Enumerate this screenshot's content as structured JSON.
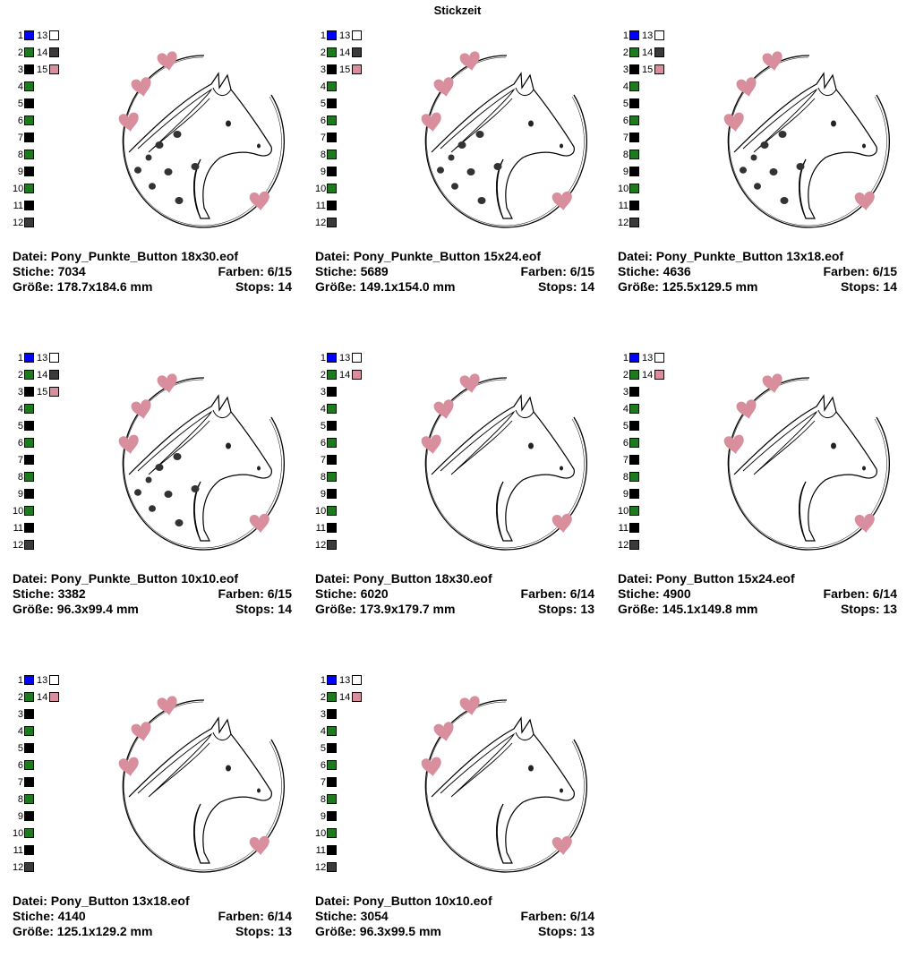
{
  "page_title": "Stickzeit",
  "labels": {
    "file": "Datei:",
    "stitches": "Stiche:",
    "colors": "Farben:",
    "size": "Größe:",
    "stops": "Stops:"
  },
  "colors": {
    "blue": "#0000ff",
    "green": "#1f7a1f",
    "black": "#000000",
    "darkgray": "#3a3a3a",
    "white": "#ffffff",
    "pink": "#d98e9d"
  },
  "designs": [
    {
      "file": "Pony_Punkte_Button 18x30.eof",
      "stitches": "7034",
      "colors": "6/15",
      "size": "178.7x184.6 mm",
      "stops": "14",
      "spots": true,
      "palette": [
        {
          "n": "1",
          "c": "blue",
          "n2": "13",
          "c2": "white"
        },
        {
          "n": "2",
          "c": "green",
          "n2": "14",
          "c2": "darkgray"
        },
        {
          "n": "3",
          "c": "black",
          "n2": "15",
          "c2": "pink"
        },
        {
          "n": "4",
          "c": "green"
        },
        {
          "n": "5",
          "c": "black"
        },
        {
          "n": "6",
          "c": "green"
        },
        {
          "n": "7",
          "c": "black"
        },
        {
          "n": "8",
          "c": "green"
        },
        {
          "n": "9",
          "c": "black"
        },
        {
          "n": "10",
          "c": "green"
        },
        {
          "n": "11",
          "c": "black"
        },
        {
          "n": "12",
          "c": "darkgray"
        }
      ]
    },
    {
      "file": "Pony_Punkte_Button 15x24.eof",
      "stitches": "5689",
      "colors": "6/15",
      "size": "149.1x154.0 mm",
      "stops": "14",
      "spots": true,
      "palette": [
        {
          "n": "1",
          "c": "blue",
          "n2": "13",
          "c2": "white"
        },
        {
          "n": "2",
          "c": "green",
          "n2": "14",
          "c2": "darkgray"
        },
        {
          "n": "3",
          "c": "black",
          "n2": "15",
          "c2": "pink"
        },
        {
          "n": "4",
          "c": "green"
        },
        {
          "n": "5",
          "c": "black"
        },
        {
          "n": "6",
          "c": "green"
        },
        {
          "n": "7",
          "c": "black"
        },
        {
          "n": "8",
          "c": "green"
        },
        {
          "n": "9",
          "c": "black"
        },
        {
          "n": "10",
          "c": "green"
        },
        {
          "n": "11",
          "c": "black"
        },
        {
          "n": "12",
          "c": "darkgray"
        }
      ]
    },
    {
      "file": "Pony_Punkte_Button 13x18.eof",
      "stitches": "4636",
      "colors": "6/15",
      "size": "125.5x129.5 mm",
      "stops": "14",
      "spots": true,
      "palette": [
        {
          "n": "1",
          "c": "blue",
          "n2": "13",
          "c2": "white"
        },
        {
          "n": "2",
          "c": "green",
          "n2": "14",
          "c2": "darkgray"
        },
        {
          "n": "3",
          "c": "black",
          "n2": "15",
          "c2": "pink"
        },
        {
          "n": "4",
          "c": "green"
        },
        {
          "n": "5",
          "c": "black"
        },
        {
          "n": "6",
          "c": "green"
        },
        {
          "n": "7",
          "c": "black"
        },
        {
          "n": "8",
          "c": "green"
        },
        {
          "n": "9",
          "c": "black"
        },
        {
          "n": "10",
          "c": "green"
        },
        {
          "n": "11",
          "c": "black"
        },
        {
          "n": "12",
          "c": "darkgray"
        }
      ]
    },
    {
      "file": "Pony_Punkte_Button 10x10.eof",
      "stitches": "3382",
      "colors": "6/15",
      "size": "96.3x99.4 mm",
      "stops": "14",
      "spots": true,
      "palette": [
        {
          "n": "1",
          "c": "blue",
          "n2": "13",
          "c2": "white"
        },
        {
          "n": "2",
          "c": "green",
          "n2": "14",
          "c2": "darkgray"
        },
        {
          "n": "3",
          "c": "black",
          "n2": "15",
          "c2": "pink"
        },
        {
          "n": "4",
          "c": "green"
        },
        {
          "n": "5",
          "c": "black"
        },
        {
          "n": "6",
          "c": "green"
        },
        {
          "n": "7",
          "c": "black"
        },
        {
          "n": "8",
          "c": "green"
        },
        {
          "n": "9",
          "c": "black"
        },
        {
          "n": "10",
          "c": "green"
        },
        {
          "n": "11",
          "c": "black"
        },
        {
          "n": "12",
          "c": "darkgray"
        }
      ]
    },
    {
      "file": "Pony_Button 18x30.eof",
      "stitches": "6020",
      "colors": "6/14",
      "size": "173.9x179.7 mm",
      "stops": "13",
      "spots": false,
      "palette": [
        {
          "n": "1",
          "c": "blue",
          "n2": "13",
          "c2": "white"
        },
        {
          "n": "2",
          "c": "green",
          "n2": "14",
          "c2": "pink"
        },
        {
          "n": "3",
          "c": "black"
        },
        {
          "n": "4",
          "c": "green"
        },
        {
          "n": "5",
          "c": "black"
        },
        {
          "n": "6",
          "c": "green"
        },
        {
          "n": "7",
          "c": "black"
        },
        {
          "n": "8",
          "c": "green"
        },
        {
          "n": "9",
          "c": "black"
        },
        {
          "n": "10",
          "c": "green"
        },
        {
          "n": "11",
          "c": "black"
        },
        {
          "n": "12",
          "c": "darkgray"
        }
      ]
    },
    {
      "file": "Pony_Button 15x24.eof",
      "stitches": "4900",
      "colors": "6/14",
      "size": "145.1x149.8 mm",
      "stops": "13",
      "spots": false,
      "palette": [
        {
          "n": "1",
          "c": "blue",
          "n2": "13",
          "c2": "white"
        },
        {
          "n": "2",
          "c": "green",
          "n2": "14",
          "c2": "pink"
        },
        {
          "n": "3",
          "c": "black"
        },
        {
          "n": "4",
          "c": "green"
        },
        {
          "n": "5",
          "c": "black"
        },
        {
          "n": "6",
          "c": "green"
        },
        {
          "n": "7",
          "c": "black"
        },
        {
          "n": "8",
          "c": "green"
        },
        {
          "n": "9",
          "c": "black"
        },
        {
          "n": "10",
          "c": "green"
        },
        {
          "n": "11",
          "c": "black"
        },
        {
          "n": "12",
          "c": "darkgray"
        }
      ]
    },
    {
      "file": "Pony_Button 13x18.eof",
      "stitches": "4140",
      "colors": "6/14",
      "size": "125.1x129.2 mm",
      "stops": "13",
      "spots": false,
      "palette": [
        {
          "n": "1",
          "c": "blue",
          "n2": "13",
          "c2": "white"
        },
        {
          "n": "2",
          "c": "green",
          "n2": "14",
          "c2": "pink"
        },
        {
          "n": "3",
          "c": "black"
        },
        {
          "n": "4",
          "c": "green"
        },
        {
          "n": "5",
          "c": "black"
        },
        {
          "n": "6",
          "c": "green"
        },
        {
          "n": "7",
          "c": "black"
        },
        {
          "n": "8",
          "c": "green"
        },
        {
          "n": "9",
          "c": "black"
        },
        {
          "n": "10",
          "c": "green"
        },
        {
          "n": "11",
          "c": "black"
        },
        {
          "n": "12",
          "c": "darkgray"
        }
      ]
    },
    {
      "file": "Pony_Button 10x10.eof",
      "stitches": "3054",
      "colors": "6/14",
      "size": "96.3x99.5 mm",
      "stops": "13",
      "spots": false,
      "palette": [
        {
          "n": "1",
          "c": "blue",
          "n2": "13",
          "c2": "white"
        },
        {
          "n": "2",
          "c": "green",
          "n2": "14",
          "c2": "pink"
        },
        {
          "n": "3",
          "c": "black"
        },
        {
          "n": "4",
          "c": "green"
        },
        {
          "n": "5",
          "c": "black"
        },
        {
          "n": "6",
          "c": "green"
        },
        {
          "n": "7",
          "c": "black"
        },
        {
          "n": "8",
          "c": "green"
        },
        {
          "n": "9",
          "c": "black"
        },
        {
          "n": "10",
          "c": "green"
        },
        {
          "n": "11",
          "c": "black"
        },
        {
          "n": "12",
          "c": "darkgray"
        }
      ]
    }
  ]
}
